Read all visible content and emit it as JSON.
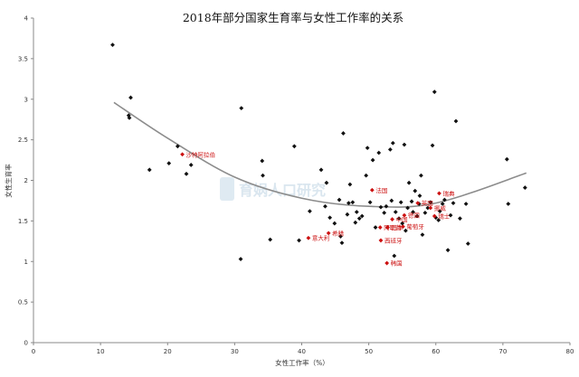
{
  "chart_data": {
    "type": "scatter",
    "title": "2018年部分国家生育率与女性工作率的关系",
    "xlabel": "女性工作率（%）",
    "ylabel": "女性生育率",
    "xlim": [
      0,
      80
    ],
    "ylim": [
      0,
      4
    ],
    "x_ticks": [
      "0",
      "10",
      "20",
      "30",
      "40",
      "50",
      "60",
      "70",
      "80"
    ],
    "y_ticks": [
      "0",
      "0.5",
      "1",
      "1.5",
      "2",
      "2.5",
      "3",
      "3.5",
      "4"
    ],
    "grid": false,
    "watermark": "育娲人口研究",
    "trendline": {
      "type": "quadratic",
      "color": "#8c8c8c",
      "points": [
        [
          12,
          2.96
        ],
        [
          20,
          2.52
        ],
        [
          30,
          2.04
        ],
        [
          40,
          1.78
        ],
        [
          50,
          1.68
        ],
        [
          60,
          1.72
        ],
        [
          73.5,
          2.09
        ]
      ]
    },
    "series": [
      {
        "color": "#111111",
        "points": [
          [
            11.8,
            3.67
          ],
          [
            14.5,
            3.02
          ],
          [
            14.3,
            2.77
          ],
          [
            14.2,
            2.8
          ],
          [
            17.3,
            2.13
          ],
          [
            20.2,
            2.21
          ],
          [
            21.5,
            2.42
          ],
          [
            22.8,
            2.08
          ],
          [
            23.5,
            2.19
          ],
          [
            31.0,
            2.89
          ],
          [
            30.9,
            1.03
          ],
          [
            34.1,
            2.24
          ],
          [
            34.2,
            2.06
          ],
          [
            35.3,
            1.27
          ],
          [
            38.9,
            2.42
          ],
          [
            39.6,
            1.26
          ],
          [
            41.2,
            1.62
          ],
          [
            42.9,
            2.13
          ],
          [
            43.7,
            1.97
          ],
          [
            43.5,
            1.68
          ],
          [
            44.2,
            1.54
          ],
          [
            44.9,
            1.47
          ],
          [
            45.6,
            1.76
          ],
          [
            45.8,
            1.31
          ],
          [
            46.2,
            2.58
          ],
          [
            46.0,
            1.23
          ],
          [
            46.8,
            1.58
          ],
          [
            47.0,
            1.72
          ],
          [
            47.2,
            1.95
          ],
          [
            47.6,
            1.73
          ],
          [
            48.0,
            1.48
          ],
          [
            48.2,
            1.61
          ],
          [
            48.6,
            1.53
          ],
          [
            49.0,
            1.56
          ],
          [
            49.6,
            2.06
          ],
          [
            49.8,
            2.4
          ],
          [
            50.2,
            1.73
          ],
          [
            50.6,
            2.25
          ],
          [
            51.0,
            1.42
          ],
          [
            51.5,
            2.34
          ],
          [
            51.8,
            1.67
          ],
          [
            52.3,
            1.6
          ],
          [
            52.6,
            1.68
          ],
          [
            52.8,
            1.42
          ],
          [
            53.2,
            2.38
          ],
          [
            53.4,
            1.75
          ],
          [
            53.6,
            2.46
          ],
          [
            53.8,
            1.07
          ],
          [
            54.0,
            1.61
          ],
          [
            54.5,
            1.53
          ],
          [
            54.8,
            1.73
          ],
          [
            55.0,
            1.47
          ],
          [
            55.3,
            2.44
          ],
          [
            55.5,
            1.38
          ],
          [
            55.8,
            1.66
          ],
          [
            56.0,
            1.97
          ],
          [
            56.4,
            1.74
          ],
          [
            56.6,
            1.61
          ],
          [
            56.9,
            1.87
          ],
          [
            57.2,
            1.56
          ],
          [
            57.5,
            1.71
          ],
          [
            57.6,
            1.81
          ],
          [
            57.8,
            2.06
          ],
          [
            58.0,
            1.33
          ],
          [
            58.4,
            1.6
          ],
          [
            58.8,
            1.66
          ],
          [
            59.2,
            1.73
          ],
          [
            59.5,
            2.43
          ],
          [
            59.8,
            3.09
          ],
          [
            60.0,
            1.54
          ],
          [
            60.4,
            1.51
          ],
          [
            60.6,
            1.62
          ],
          [
            61.0,
            1.71
          ],
          [
            61.3,
            1.76
          ],
          [
            61.8,
            1.14
          ],
          [
            62.2,
            1.57
          ],
          [
            62.6,
            1.72
          ],
          [
            63.0,
            2.73
          ],
          [
            63.6,
            1.53
          ],
          [
            64.5,
            1.71
          ],
          [
            64.8,
            1.22
          ],
          [
            70.6,
            2.26
          ],
          [
            70.8,
            1.71
          ],
          [
            73.3,
            1.91
          ]
        ]
      },
      {
        "color": "#cc1111",
        "points": [
          {
            "x": 22.2,
            "y": 2.32,
            "label": "沙特阿拉伯"
          },
          {
            "x": 41.0,
            "y": 1.29,
            "label": "意大利"
          },
          {
            "x": 44.0,
            "y": 1.35,
            "label": "希腊"
          },
          {
            "x": 50.5,
            "y": 1.88,
            "label": "法国"
          },
          {
            "x": 51.7,
            "y": 1.42,
            "label": "阿联酋"
          },
          {
            "x": 51.8,
            "y": 1.26,
            "label": "西班牙"
          },
          {
            "x": 52.7,
            "y": 0.98,
            "label": "韩国"
          },
          {
            "x": 52.8,
            "y": 1.42,
            "label": "日本"
          },
          {
            "x": 53.5,
            "y": 1.52,
            "label": "中国"
          },
          {
            "x": 55.1,
            "y": 1.43,
            "label": "葡萄牙"
          },
          {
            "x": 55.3,
            "y": 1.57,
            "label": "德国"
          },
          {
            "x": 57.3,
            "y": 1.72,
            "label": "英国"
          },
          {
            "x": 59.2,
            "y": 1.66,
            "label": "挪威"
          },
          {
            "x": 59.8,
            "y": 1.56,
            "label": "瑞士"
          },
          {
            "x": 60.5,
            "y": 1.84,
            "label": "瑞典"
          }
        ]
      }
    ]
  }
}
